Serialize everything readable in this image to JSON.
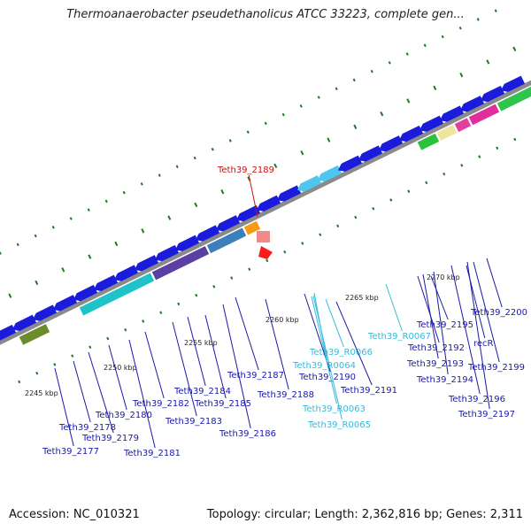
{
  "title": "Thermoanaerobacter pseudethanolicus ATCC 33223, complete gen...",
  "footer": {
    "accession": "Accession: NC_010321",
    "topology": "Topology: circular; Length: 2,362,816 bp; Genes: 2,311"
  },
  "colors": {
    "backbone": "#8a8a8a",
    "gene_blue": "#1b1bdc",
    "tick": "#1f7a1f",
    "label_blue": "#1a1aa6",
    "label_cyan": "#33bbdd",
    "label_red": "#cc1111"
  },
  "scale_labels": [
    "2245 kbp",
    "2250 kbp",
    "2255 kbp",
    "2260 kbp",
    "2265 kbp",
    "2270 kbp"
  ],
  "gene_labels": [
    {
      "name": "Teth39_2189",
      "color": "red"
    },
    {
      "name": "Teth39_2200",
      "color": "blue"
    },
    {
      "name": "Teth39_R0067",
      "color": "cyan"
    },
    {
      "name": "Teth39_2195",
      "color": "blue"
    },
    {
      "name": "recR",
      "color": "blue"
    },
    {
      "name": "Teth39_2192",
      "color": "blue"
    },
    {
      "name": "Teth39_R0066",
      "color": "cyan"
    },
    {
      "name": "Teth39_2193",
      "color": "blue"
    },
    {
      "name": "Teth39_2199",
      "color": "blue"
    },
    {
      "name": "Teth39_R0064",
      "color": "cyan"
    },
    {
      "name": "Teth39_2187",
      "color": "blue"
    },
    {
      "name": "Teth39_2190",
      "color": "blue"
    },
    {
      "name": "Teth39_2194",
      "color": "blue"
    },
    {
      "name": "Teth39_2184",
      "color": "blue"
    },
    {
      "name": "Teth39_2191",
      "color": "blue"
    },
    {
      "name": "Teth39_2188",
      "color": "blue"
    },
    {
      "name": "Teth39_2196",
      "color": "blue"
    },
    {
      "name": "Teth39_2182",
      "color": "blue"
    },
    {
      "name": "Teth39_2185",
      "color": "blue"
    },
    {
      "name": "Teth39_R0063",
      "color": "cyan"
    },
    {
      "name": "Teth39_2180",
      "color": "blue"
    },
    {
      "name": "Teth39_2197",
      "color": "blue"
    },
    {
      "name": "Teth39_2183",
      "color": "blue"
    },
    {
      "name": "Teth39_R0065",
      "color": "cyan"
    },
    {
      "name": "Teth39_2178",
      "color": "blue"
    },
    {
      "name": "Teth39_2186",
      "color": "blue"
    },
    {
      "name": "Teth39_2179",
      "color": "blue"
    },
    {
      "name": "Teth39_2177",
      "color": "blue"
    },
    {
      "name": "Teth39_2181",
      "color": "blue"
    }
  ]
}
